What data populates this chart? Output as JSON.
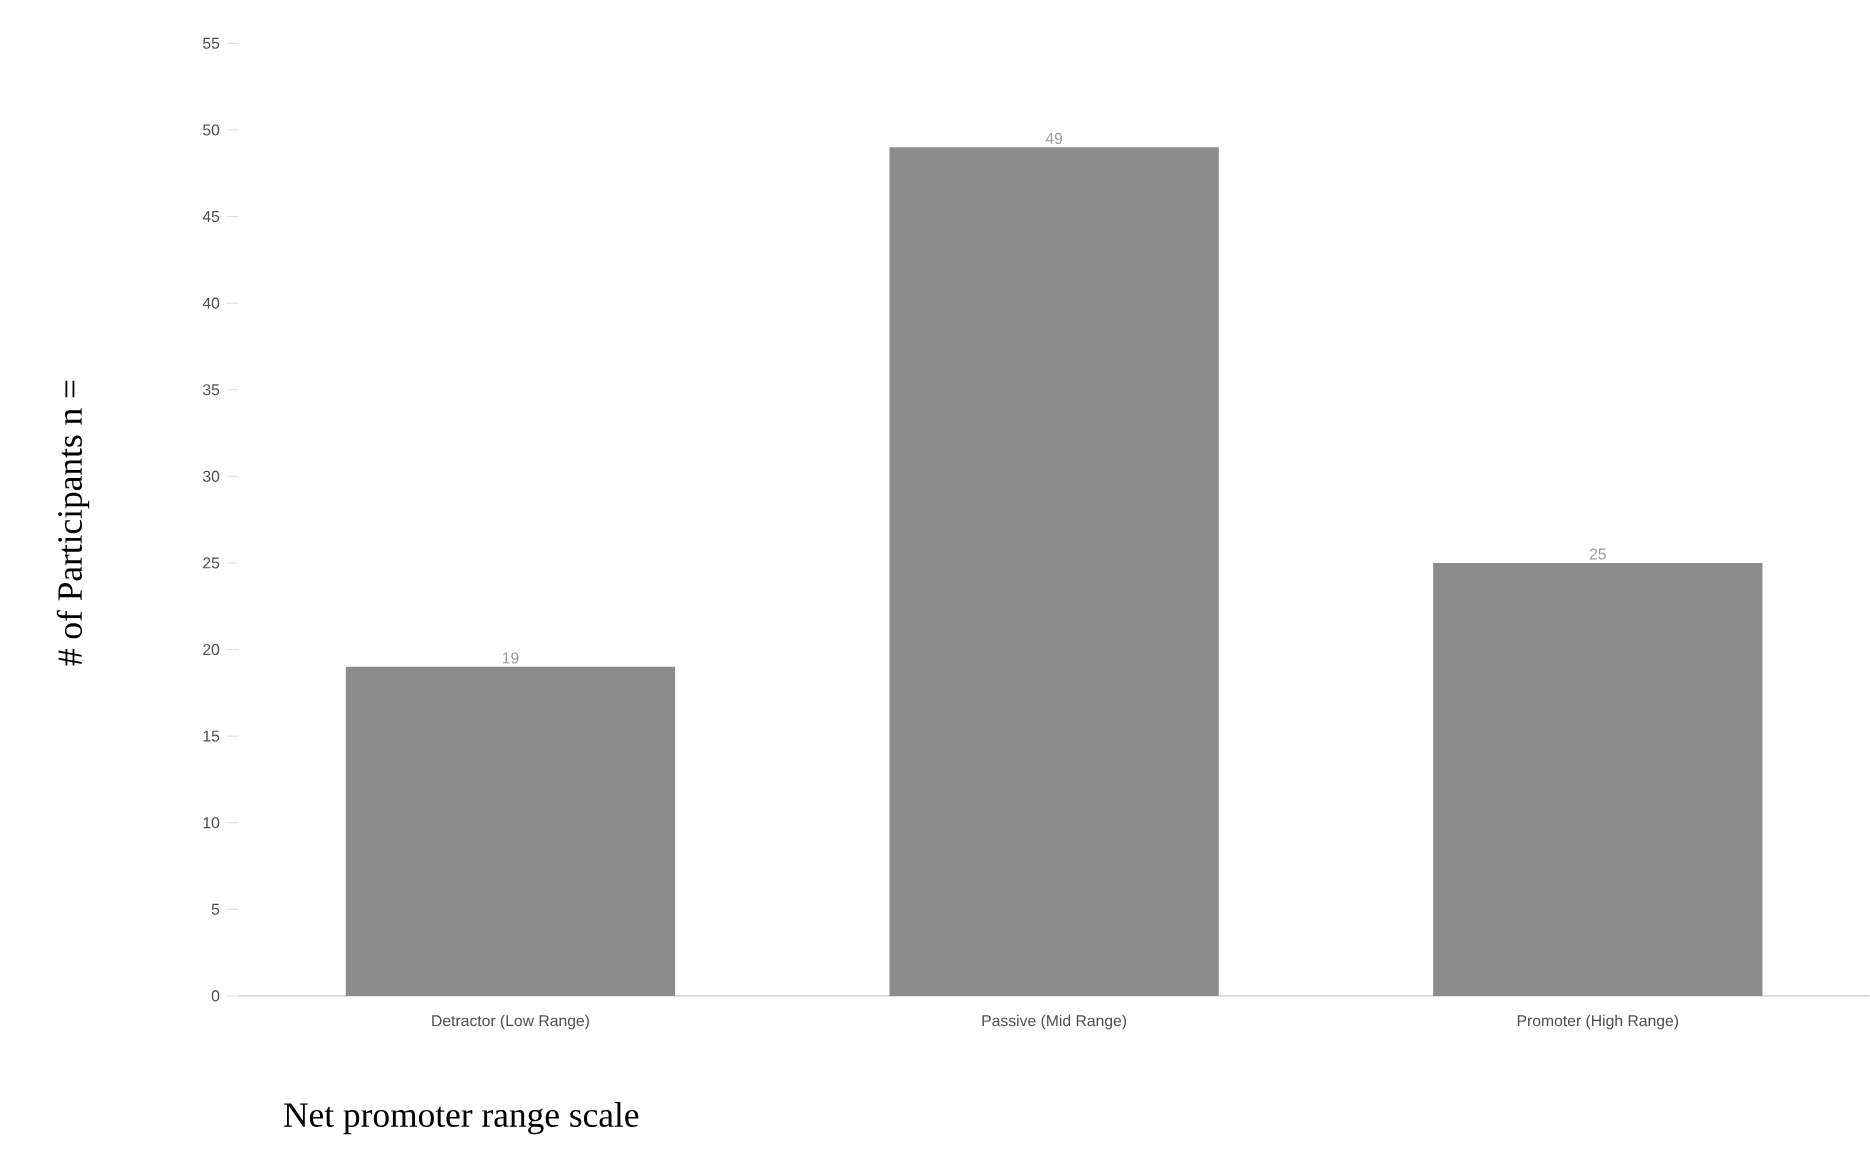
{
  "chart_data": {
    "type": "bar",
    "xlabel": "Net promoter range scale",
    "ylabel": "# of Participants n =",
    "categories": [
      "Detractor (Low Range)",
      "Passive (Mid Range)",
      "Promoter (High Range)"
    ],
    "values": [
      19,
      49,
      25
    ],
    "color": "#8c8c8c",
    "data_labels": true,
    "ylim": [
      0,
      55
    ],
    "yticks": [
      0,
      5,
      10,
      15,
      20,
      25,
      30,
      35,
      40,
      45,
      50,
      55
    ],
    "grid": false
  }
}
